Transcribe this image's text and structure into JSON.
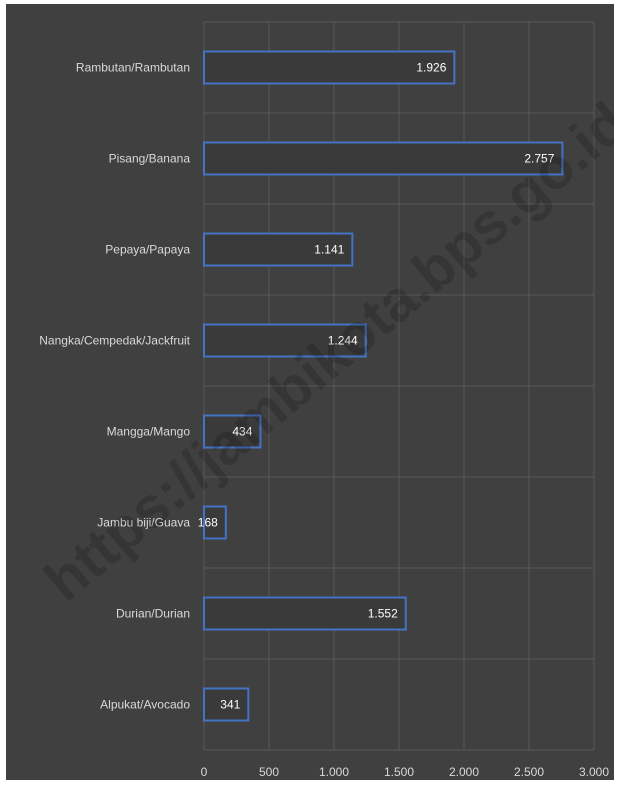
{
  "watermark": "https://jambikota.bps.go.id",
  "colors": {
    "background": "#404040",
    "bar_fill": "#3a3a3a",
    "bar_outline": "#4472c4",
    "gridline": "#595959",
    "text": "#d9d9d9"
  },
  "chart_data": {
    "type": "bar",
    "orientation": "horizontal",
    "categories": [
      "Rambutan/Rambutan",
      "Pisang/Banana",
      "Pepaya/Papaya",
      "Nangka/Cempedak/Jackfruit",
      "Mangga/Mango",
      "Jambu biji/Guava",
      "Durian/Durian",
      "Alpukat/Avocado"
    ],
    "values": [
      1926,
      2757,
      1141,
      1244,
      434,
      168,
      1552,
      341
    ],
    "value_labels": [
      "1.926",
      "2.757",
      "1.141",
      "1.244",
      "434",
      "168",
      "1.552",
      "341"
    ],
    "xlim": [
      0,
      3000
    ],
    "ticks": [
      0,
      500,
      1000,
      1500,
      2000,
      2500,
      3000
    ],
    "tick_labels": [
      "0",
      "500",
      "1.000",
      "1.500",
      "2.000",
      "2.500",
      "3.000"
    ],
    "grid": true,
    "legend": "none"
  }
}
